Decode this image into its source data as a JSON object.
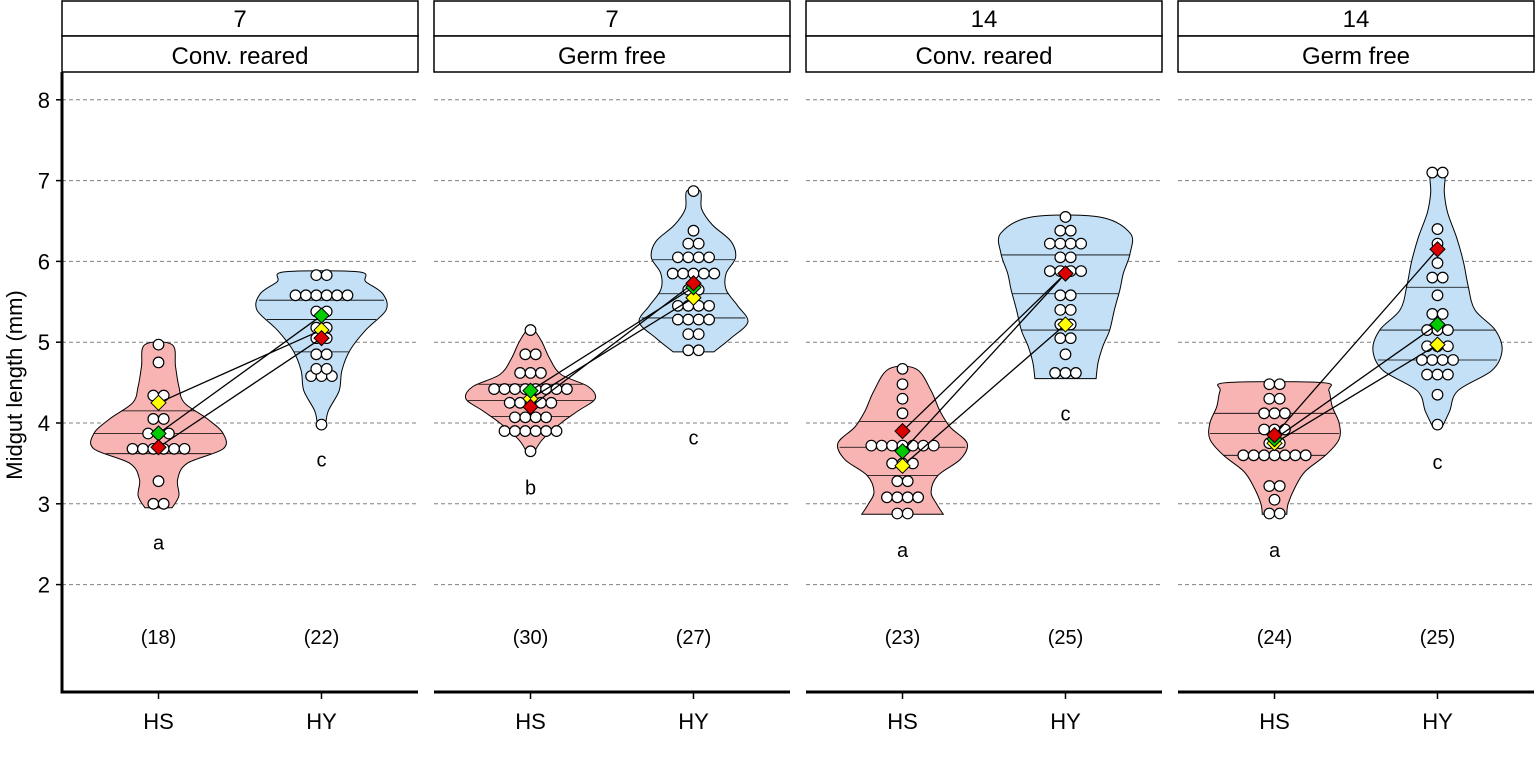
{
  "chart_data": {
    "type": "violin",
    "ylabel": "Midgut length (mm)",
    "yticks": [
      2,
      3,
      4,
      5,
      6,
      7,
      8
    ],
    "ylim": [
      0.8,
      8.3
    ],
    "categories": [
      "HS",
      "HY"
    ],
    "colors": {
      "HS": "#f8b3b3",
      "HY": "#c3e0f7"
    },
    "mean_colors": [
      "#ffff00",
      "#00cc00",
      "#dd0000"
    ],
    "grid": "horizontal dashed",
    "panels": [
      {
        "strip_top": "7",
        "strip_bottom": "Conv. reared",
        "groups": [
          {
            "name": "HS",
            "n_label": "(18)",
            "letter": "a",
            "n_y": 1.35,
            "letter_y": 2.52,
            "range": [
              2.95,
              4.97
            ],
            "quartiles": [
              3.62,
              3.87,
              4.15
            ],
            "violin": [
              [
                2.95,
                0.2
              ],
              [
                3.1,
                0.3
              ],
              [
                3.3,
                0.28
              ],
              [
                3.5,
                0.42
              ],
              [
                3.68,
                0.95
              ],
              [
                3.87,
                0.95
              ],
              [
                4.05,
                0.72
              ],
              [
                4.25,
                0.38
              ],
              [
                4.45,
                0.3
              ],
              [
                4.7,
                0.25
              ],
              [
                4.97,
                0.2
              ]
            ],
            "points": [
              3.0,
              3.0,
              3.28,
              3.68,
              3.68,
              3.68,
              3.68,
              3.68,
              3.68,
              3.87,
              3.87,
              3.87,
              4.05,
              4.05,
              4.34,
              4.34,
              4.75,
              4.97
            ],
            "means": [
              4.25,
              3.87,
              3.7
            ]
          },
          {
            "name": "HY",
            "n_label": "(22)",
            "letter": "c",
            "n_y": 1.35,
            "letter_y": 3.55,
            "range": [
              3.97,
              5.87
            ],
            "quartiles": [
              4.88,
              5.28,
              5.52
            ],
            "violin": [
              [
                3.97,
                0.06
              ],
              [
                4.15,
                0.1
              ],
              [
                4.4,
                0.26
              ],
              [
                4.65,
                0.3
              ],
              [
                4.9,
                0.42
              ],
              [
                5.15,
                0.65
              ],
              [
                5.4,
                0.95
              ],
              [
                5.6,
                0.9
              ],
              [
                5.75,
                0.65
              ],
              [
                5.87,
                0.55
              ]
            ],
            "points": [
              3.98,
              4.58,
              4.58,
              4.58,
              4.67,
              4.67,
              4.85,
              4.85,
              5.05,
              5.05,
              5.18,
              5.18,
              5.38,
              5.38,
              5.58,
              5.58,
              5.58,
              5.58,
              5.58,
              5.58,
              5.83,
              5.83
            ],
            "means": [
              5.15,
              5.33,
              5.05
            ]
          }
        ]
      },
      {
        "strip_top": "7",
        "strip_bottom": "Germ free",
        "groups": [
          {
            "name": "HS",
            "n_label": "(30)",
            "letter": "b",
            "n_y": 1.35,
            "letter_y": 3.2,
            "range": [
              3.65,
              5.15
            ],
            "quartiles": [
              4.08,
              4.28,
              4.48
            ],
            "violin": [
              [
                3.65,
                0.06
              ],
              [
                3.8,
                0.18
              ],
              [
                4.0,
                0.45
              ],
              [
                4.15,
                0.7
              ],
              [
                4.3,
                0.95
              ],
              [
                4.45,
                0.85
              ],
              [
                4.6,
                0.45
              ],
              [
                4.8,
                0.28
              ],
              [
                5.0,
                0.17
              ],
              [
                5.15,
                0.05
              ]
            ],
            "points": [
              3.65,
              3.9,
              3.9,
              3.9,
              3.9,
              3.9,
              3.9,
              4.07,
              4.07,
              4.07,
              4.07,
              4.25,
              4.25,
              4.25,
              4.25,
              4.25,
              4.42,
              4.42,
              4.42,
              4.42,
              4.42,
              4.42,
              4.42,
              4.42,
              4.62,
              4.62,
              4.62,
              4.85,
              4.85,
              5.15
            ],
            "means": [
              4.3,
              4.4,
              4.2
            ]
          },
          {
            "name": "HY",
            "n_label": "(27)",
            "letter": "c",
            "n_y": 1.35,
            "letter_y": 3.82,
            "range": [
              4.88,
              6.87
            ],
            "quartiles": [
              5.3,
              5.6,
              6.02
            ],
            "violin": [
              [
                4.88,
                0.3
              ],
              [
                5.05,
                0.55
              ],
              [
                5.25,
                0.8
              ],
              [
                5.45,
                0.65
              ],
              [
                5.65,
                0.48
              ],
              [
                5.85,
                0.48
              ],
              [
                6.05,
                0.62
              ],
              [
                6.25,
                0.55
              ],
              [
                6.45,
                0.28
              ],
              [
                6.65,
                0.12
              ],
              [
                6.87,
                0.1
              ]
            ],
            "points": [
              4.9,
              4.9,
              5.1,
              5.1,
              5.28,
              5.28,
              5.28,
              5.28,
              5.45,
              5.45,
              5.45,
              5.45,
              5.65,
              5.65,
              5.85,
              5.85,
              5.85,
              5.85,
              5.85,
              6.05,
              6.05,
              6.05,
              6.05,
              6.22,
              6.22,
              6.38,
              6.87
            ],
            "means": [
              5.55,
              5.68,
              5.73
            ]
          }
        ]
      },
      {
        "strip_top": "14",
        "strip_bottom": "Conv. reared",
        "groups": [
          {
            "name": "HS",
            "n_label": "(23)",
            "letter": "a",
            "n_y": 1.35,
            "letter_y": 2.43,
            "range": [
              2.87,
              4.67
            ],
            "quartiles": [
              3.35,
              3.7,
              4.02
            ],
            "violin": [
              [
                2.87,
                0.6
              ],
              [
                3.0,
                0.5
              ],
              [
                3.15,
                0.42
              ],
              [
                3.35,
                0.52
              ],
              [
                3.55,
                0.85
              ],
              [
                3.75,
                0.95
              ],
              [
                3.95,
                0.7
              ],
              [
                4.15,
                0.55
              ],
              [
                4.4,
                0.42
              ],
              [
                4.67,
                0.2
              ]
            ],
            "points": [
              2.88,
              2.88,
              3.08,
              3.08,
              3.08,
              3.08,
              3.28,
              3.28,
              3.5,
              3.5,
              3.5,
              3.72,
              3.72,
              3.72,
              3.72,
              3.72,
              3.72,
              3.72,
              3.9,
              4.12,
              4.3,
              4.48,
              4.67
            ],
            "means": [
              3.47,
              3.65,
              3.9
            ]
          },
          {
            "name": "HY",
            "n_label": "(25)",
            "letter": "c",
            "n_y": 1.35,
            "letter_y": 4.12,
            "range": [
              4.55,
              6.55
            ],
            "quartiles": [
              5.15,
              5.6,
              6.08
            ],
            "violin": [
              [
                4.55,
                0.45
              ],
              [
                4.75,
                0.48
              ],
              [
                4.95,
                0.55
              ],
              [
                5.15,
                0.65
              ],
              [
                5.4,
                0.72
              ],
              [
                5.65,
                0.8
              ],
              [
                5.85,
                0.85
              ],
              [
                6.1,
                0.95
              ],
              [
                6.35,
                0.95
              ],
              [
                6.55,
                0.5
              ]
            ],
            "points": [
              4.62,
              4.62,
              4.62,
              4.85,
              5.05,
              5.05,
              5.22,
              5.22,
              5.4,
              5.4,
              5.58,
              5.58,
              5.88,
              5.88,
              5.88,
              5.88,
              6.05,
              6.05,
              6.22,
              6.22,
              6.22,
              6.22,
              6.38,
              6.38,
              6.55
            ],
            "means": [
              5.22,
              5.85,
              5.85
            ]
          }
        ]
      },
      {
        "strip_top": "14",
        "strip_bottom": "Germ free",
        "groups": [
          {
            "name": "HS",
            "n_label": "(24)",
            "letter": "a",
            "n_y": 1.35,
            "letter_y": 2.43,
            "range": [
              2.87,
              4.5
            ],
            "quartiles": [
              3.6,
              3.87,
              4.12
            ],
            "violin": [
              [
                2.87,
                0.18
              ],
              [
                3.0,
                0.2
              ],
              [
                3.2,
                0.3
              ],
              [
                3.4,
                0.45
              ],
              [
                3.6,
                0.75
              ],
              [
                3.8,
                0.95
              ],
              [
                4.0,
                0.95
              ],
              [
                4.2,
                0.85
              ],
              [
                4.4,
                0.8
              ],
              [
                4.5,
                0.7
              ]
            ],
            "points": [
              2.88,
              2.88,
              3.05,
              3.22,
              3.22,
              3.6,
              3.6,
              3.6,
              3.6,
              3.6,
              3.6,
              3.6,
              3.75,
              3.75,
              3.92,
              3.92,
              3.92,
              4.12,
              4.12,
              4.12,
              4.3,
              4.3,
              4.48,
              4.48
            ],
            "means": [
              3.75,
              3.8,
              3.85
            ]
          },
          {
            "name": "HY",
            "n_label": "(25)",
            "letter": "c",
            "n_y": 1.35,
            "letter_y": 3.52,
            "range": [
              3.97,
              7.1
            ],
            "quartiles": [
              4.78,
              5.15,
              5.68
            ],
            "violin": [
              [
                3.97,
                0.08
              ],
              [
                4.15,
                0.18
              ],
              [
                4.4,
                0.3
              ],
              [
                4.65,
                0.8
              ],
              [
                4.9,
                0.95
              ],
              [
                5.15,
                0.85
              ],
              [
                5.4,
                0.55
              ],
              [
                5.7,
                0.45
              ],
              [
                6.0,
                0.38
              ],
              [
                6.3,
                0.28
              ],
              [
                6.6,
                0.15
              ],
              [
                6.85,
                0.1
              ],
              [
                7.1,
                0.1
              ]
            ],
            "points": [
              3.98,
              4.35,
              4.6,
              4.6,
              4.6,
              4.78,
              4.78,
              4.78,
              4.78,
              4.95,
              4.95,
              4.95,
              5.15,
              5.15,
              5.15,
              5.35,
              5.35,
              5.58,
              5.8,
              5.8,
              5.98,
              6.22,
              6.4,
              7.1,
              7.1
            ],
            "means": [
              4.97,
              5.22,
              6.15
            ]
          }
        ]
      }
    ]
  }
}
